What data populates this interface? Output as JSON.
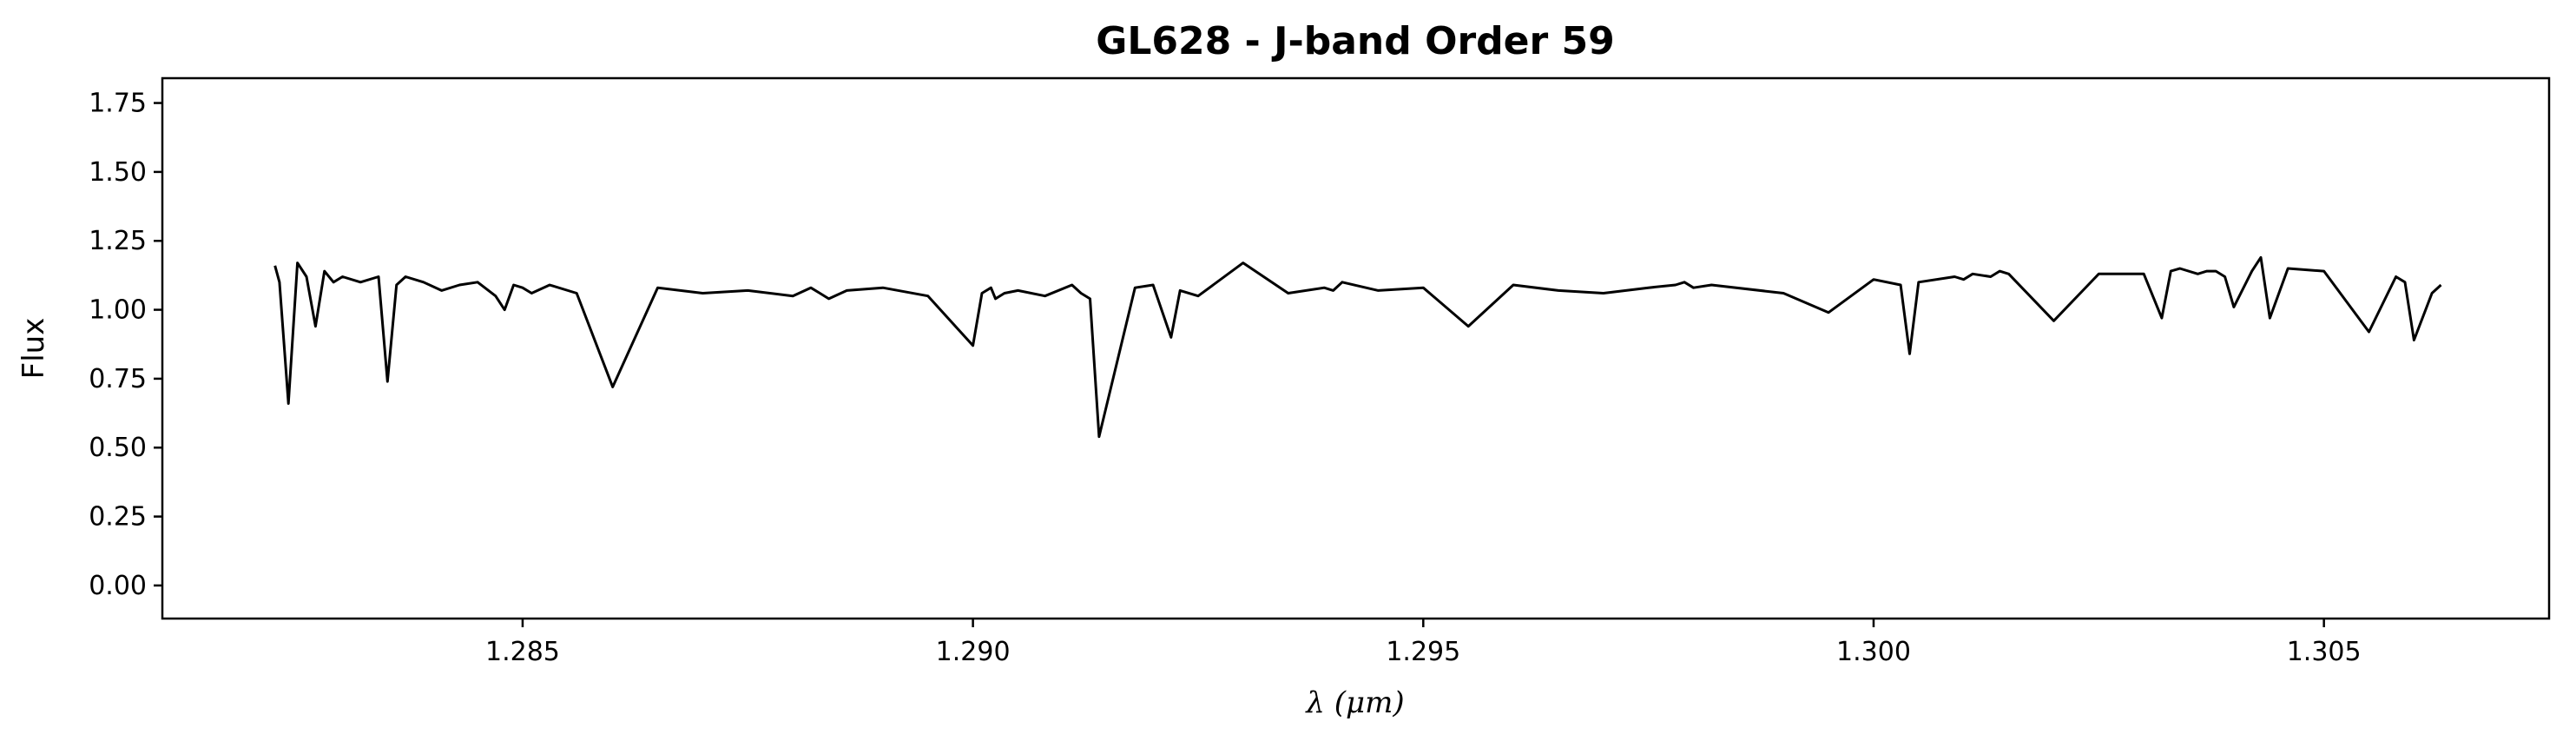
{
  "chart_data": {
    "type": "line",
    "title": "GL628 - J-band Order 59",
    "xlabel": "λ (μm)",
    "ylabel": "Flux",
    "xlim": [
      1.281,
      1.3075
    ],
    "ylim": [
      -0.12,
      1.84
    ],
    "xticks": [
      1.285,
      1.29,
      1.295,
      1.3,
      1.305
    ],
    "xtick_labels": [
      "1.285",
      "1.290",
      "1.295",
      "1.300",
      "1.305"
    ],
    "yticks": [
      0.0,
      0.25,
      0.5,
      0.75,
      1.0,
      1.25,
      1.5,
      1.75
    ],
    "ytick_labels": [
      "0.00",
      "0.25",
      "0.50",
      "0.75",
      "1.00",
      "1.25",
      "1.50",
      "1.75"
    ],
    "grid": false,
    "legend": "none",
    "line_color": "#000000",
    "series": [
      {
        "x": [
          1.28225,
          1.2823,
          1.2824,
          1.2825,
          1.2826,
          1.2827,
          1.2828,
          1.2829,
          1.283,
          1.2832,
          1.2834,
          1.2835,
          1.2836,
          1.2837,
          1.2839,
          1.2841,
          1.2843,
          1.2845,
          1.2847,
          1.2848,
          1.2849,
          1.285,
          1.2851,
          1.2853,
          1.2856,
          1.286,
          1.2865,
          1.287,
          1.2875,
          1.288,
          1.2882,
          1.2883,
          1.2884,
          1.2886,
          1.289,
          1.2895,
          1.29,
          1.2901,
          1.2902,
          1.29025,
          1.29035,
          1.2905,
          1.2908,
          1.2911,
          1.2912,
          1.2913,
          1.2914,
          1.2918,
          1.292,
          1.2922,
          1.2923,
          1.2925,
          1.293,
          1.2935,
          1.2939,
          1.294,
          1.2941,
          1.2945,
          1.295,
          1.2955,
          1.296,
          1.2965,
          1.297,
          1.2975,
          1.2978,
          1.2979,
          1.298,
          1.2982,
          1.299,
          1.2995,
          1.3,
          1.3003,
          1.3004,
          1.3005,
          1.3009,
          1.301,
          1.3011,
          1.3013,
          1.3014,
          1.3015,
          1.302,
          1.3025,
          1.303,
          1.3032,
          1.3033,
          1.3034,
          1.3036,
          1.3037,
          1.3038,
          1.3039,
          1.304,
          1.3042,
          1.3043,
          1.3044,
          1.3046,
          1.305,
          1.3055,
          1.3058,
          1.3059,
          1.306,
          1.3062,
          1.3063
        ],
        "y": [
          1.16,
          1.1,
          0.66,
          1.17,
          1.12,
          0.94,
          1.14,
          1.1,
          1.12,
          1.1,
          1.12,
          0.74,
          1.09,
          1.12,
          1.1,
          1.07,
          1.09,
          1.1,
          1.05,
          1.0,
          1.09,
          1.08,
          1.06,
          1.09,
          1.06,
          0.72,
          1.08,
          1.06,
          1.07,
          1.05,
          1.08,
          1.06,
          1.04,
          1.07,
          1.08,
          1.05,
          0.87,
          1.06,
          1.08,
          1.04,
          1.06,
          1.07,
          1.05,
          1.09,
          1.06,
          1.04,
          0.54,
          1.08,
          1.09,
          0.9,
          1.07,
          1.05,
          1.17,
          1.06,
          1.08,
          1.07,
          1.1,
          1.07,
          1.08,
          0.94,
          1.09,
          1.07,
          1.06,
          1.08,
          1.09,
          1.1,
          1.08,
          1.09,
          1.06,
          0.99,
          1.11,
          1.09,
          0.84,
          1.1,
          1.12,
          1.11,
          1.13,
          1.12,
          1.14,
          1.13,
          0.96,
          1.13,
          1.13,
          0.97,
          1.14,
          1.15,
          1.13,
          1.14,
          1.14,
          1.12,
          1.01,
          1.14,
          1.19,
          0.97,
          1.15,
          1.14,
          0.92,
          1.12,
          1.1,
          0.89,
          1.06,
          1.09
        ]
      }
    ]
  }
}
